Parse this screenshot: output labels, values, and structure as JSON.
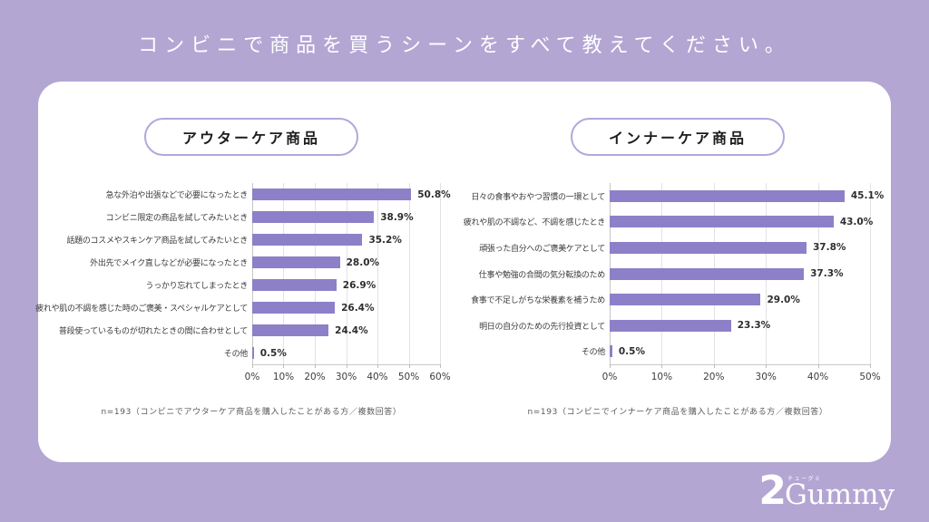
{
  "page": {
    "title": "コンビニで商品を買うシーンをすべて教えてください。"
  },
  "colors": {
    "background": "#b3a6d3",
    "card": "#ffffff",
    "bar": "#8d80c8",
    "pill_border": "#b0a8dc",
    "grid": "#e2e2e2",
    "axis": "#c9c9c9",
    "value_text": "#2e2e2e",
    "label_text": "#3a3a3a",
    "note_text": "#5a5a5a",
    "title_text": "#ffffff"
  },
  "logo": {
    "prefix": "2",
    "name": "Gummy",
    "furigana": "チューグミ"
  },
  "chart_data": [
    {
      "type": "bar",
      "orientation": "horizontal",
      "title": "アウターケア商品",
      "categories": [
        "急な外泊や出張などで必要になったとき",
        "コンビニ限定の商品を試してみたいとき",
        "話題のコスメやスキンケア商品を試してみたいとき",
        "外出先でメイク直しなどが必要になったとき",
        "うっかり忘れてしまったとき",
        "疲れや肌の不調を感じた時のご褒美・スペシャルケアとして",
        "普段使っているものが切れたときの間に合わせとして",
        "その他"
      ],
      "values": [
        50.8,
        38.9,
        35.2,
        28.0,
        26.9,
        26.4,
        24.4,
        0.5
      ],
      "value_labels": [
        "50.8%",
        "38.9%",
        "35.2%",
        "28.0%",
        "26.9%",
        "26.4%",
        "24.4%",
        "0.5%"
      ],
      "xlim": [
        0,
        60
      ],
      "x_ticks": [
        "0%",
        "10%",
        "20%",
        "30%",
        "40%",
        "50%",
        "60%"
      ],
      "grid": true,
      "legend": false,
      "note": "n=193（コンビニでアウターケア商品を購入したことがある方／複数回答）"
    },
    {
      "type": "bar",
      "orientation": "horizontal",
      "title": "インナーケア商品",
      "categories": [
        "日々の食事やおやつ習慣の一環として",
        "疲れや肌の不調など、不調を感じたとき",
        "頑張った自分へのご褒美ケアとして",
        "仕事や勉強の合間の気分転換のため",
        "食事で不足しがちな栄養素を補うため",
        "明日の自分のための先行投資として",
        "その他"
      ],
      "values": [
        45.1,
        43.0,
        37.8,
        37.3,
        29.0,
        23.3,
        0.5
      ],
      "value_labels": [
        "45.1%",
        "43.0%",
        "37.8%",
        "37.3%",
        "29.0%",
        "23.3%",
        "0.5%"
      ],
      "xlim": [
        0,
        50
      ],
      "x_ticks": [
        "0%",
        "10%",
        "20%",
        "30%",
        "40%",
        "50%"
      ],
      "grid": true,
      "legend": false,
      "note": "n=193（コンビニでインナーケア商品を購入したことがある方／複数回答）"
    }
  ]
}
